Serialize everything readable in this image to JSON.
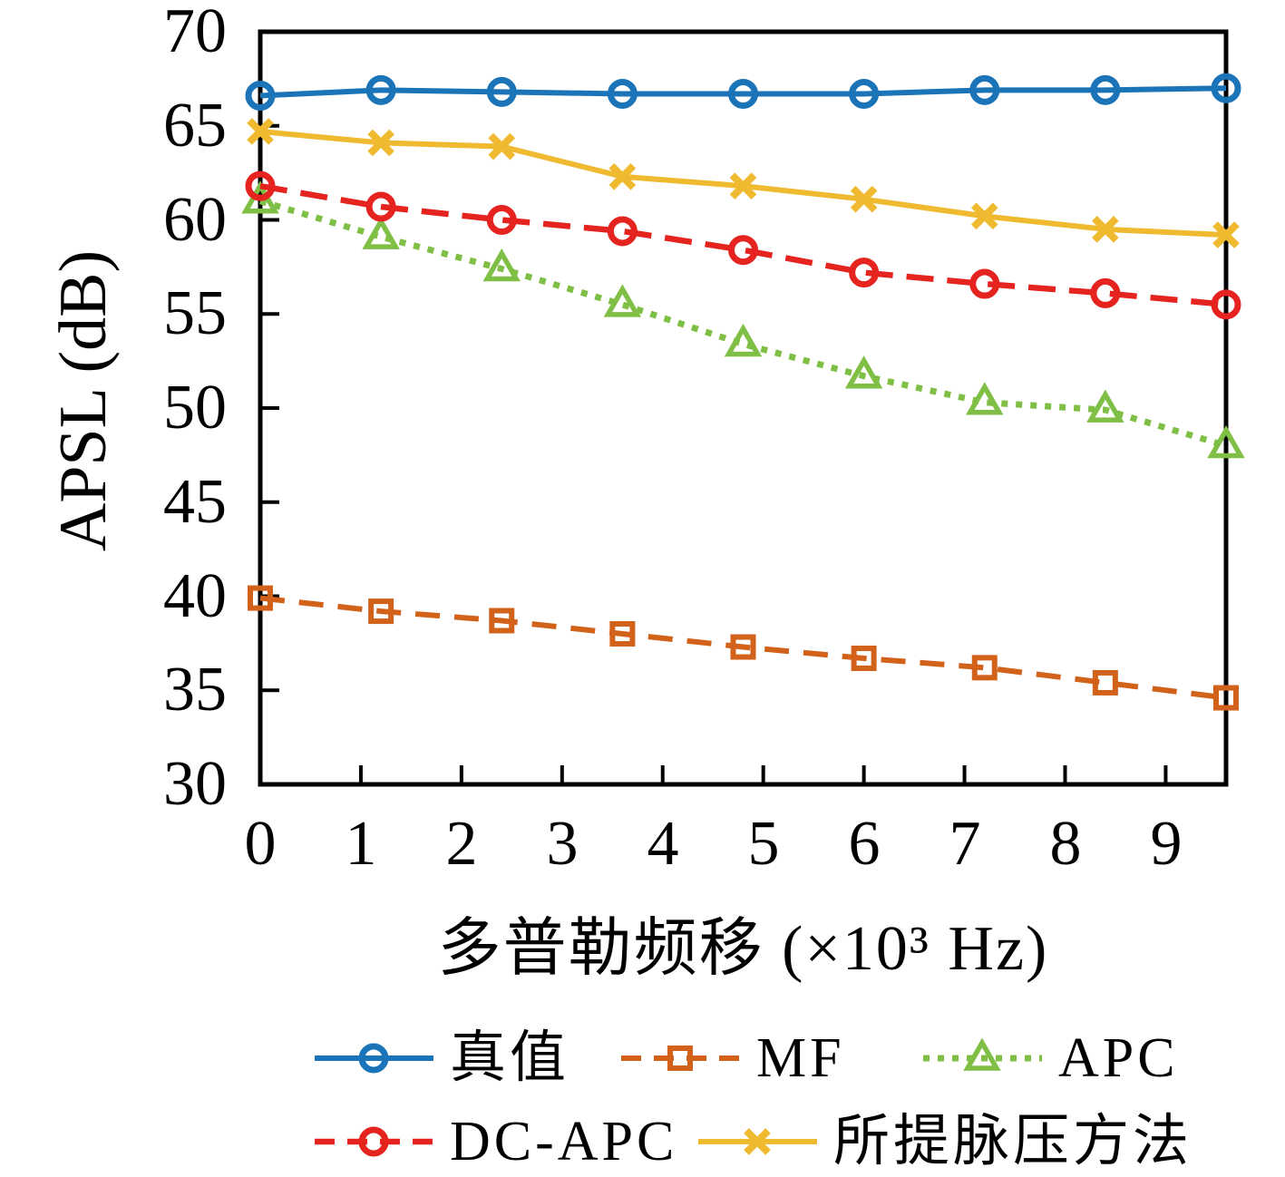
{
  "figure": {
    "ylabel": "APSL (dB)",
    "xlabel": "多普勒频移 (×10³ Hz)"
  },
  "axes": {
    "yticks": [
      "70",
      "65",
      "60",
      "55",
      "50",
      "45",
      "40",
      "35",
      "30"
    ],
    "xticks": [
      "0",
      "1",
      "2",
      "3",
      "4",
      "5",
      "6",
      "7",
      "8",
      "9"
    ]
  },
  "chart_data": {
    "type": "line",
    "title": "",
    "xlabel": "多普勒频移 (×10³ Hz)",
    "ylabel": "APSL (dB)",
    "xlim": [
      0,
      9.6
    ],
    "ylim": [
      30,
      70
    ],
    "grid": false,
    "legend_position": "below-two-rows",
    "x": [
      0,
      1.2,
      2.4,
      3.6,
      4.8,
      6.0,
      7.2,
      8.4,
      9.6
    ],
    "series": [
      {
        "name": "真值",
        "color": "#1b74b8",
        "style": "solid",
        "marker": "circle",
        "lw": 6,
        "values": [
          66.6,
          66.9,
          66.8,
          66.7,
          66.7,
          66.7,
          66.9,
          66.9,
          67.0
        ]
      },
      {
        "name": "MF",
        "color": "#d2611a",
        "style": "dashed",
        "marker": "square",
        "lw": 6,
        "values": [
          39.9,
          39.2,
          38.7,
          38.0,
          37.3,
          36.7,
          36.2,
          35.4,
          34.6
        ]
      },
      {
        "name": "APC",
        "color": "#80bf45",
        "style": "dotted",
        "marker": "triangle",
        "lw": 7,
        "values": [
          61.0,
          59.1,
          57.4,
          55.5,
          53.4,
          51.7,
          50.3,
          49.9,
          48.0
        ]
      },
      {
        "name": "DC-APC",
        "color": "#e5231f",
        "style": "dashed-long",
        "marker": "circle",
        "lw": 6.5,
        "values": [
          61.8,
          60.7,
          60.0,
          59.4,
          58.4,
          57.2,
          56.6,
          56.1,
          55.5
        ]
      },
      {
        "name": "所提脉压方法",
        "color": "#efba30",
        "style": "solid",
        "marker": "x",
        "lw": 6,
        "values": [
          64.7,
          64.1,
          63.9,
          62.3,
          61.8,
          61.1,
          60.2,
          59.5,
          59.2
        ]
      }
    ],
    "legend_rows": [
      [
        "真值",
        "MF",
        "APC"
      ],
      [
        "DC-APC",
        "所提脉压方法"
      ]
    ]
  }
}
